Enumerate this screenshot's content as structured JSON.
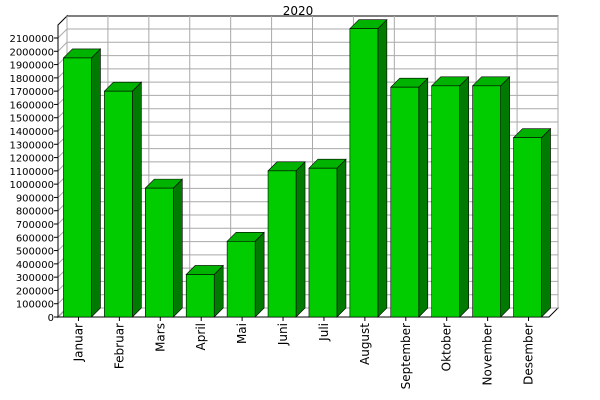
{
  "chart_data": {
    "type": "bar",
    "title": "2020",
    "xlabel": "",
    "ylabel": "",
    "categories": [
      "Januar",
      "Februar",
      "Mars",
      "April",
      "Mai",
      "Juni",
      "Juli",
      "August",
      "September",
      "Oktober",
      "November",
      "Desember"
    ],
    "values": [
      1950000,
      1700000,
      970000,
      320000,
      570000,
      1100000,
      1120000,
      2170000,
      1730000,
      1740000,
      1740000,
      1350000
    ],
    "ylim": [
      0,
      2100000
    ],
    "yticks": [
      0,
      100000,
      200000,
      300000,
      400000,
      500000,
      600000,
      700000,
      800000,
      900000,
      1000000,
      1100000,
      1200000,
      1300000,
      1400000,
      1500000,
      1600000,
      1700000,
      1800000,
      1900000,
      2000000,
      2100000
    ],
    "grid": true,
    "legend": "none",
    "colors": {
      "bar_front": "#00cc00",
      "bar_side": "#007a00",
      "bar_top": "#00b300",
      "grid": "#a9a9a9",
      "wall": "#ffffff",
      "axis": "#000000"
    }
  }
}
